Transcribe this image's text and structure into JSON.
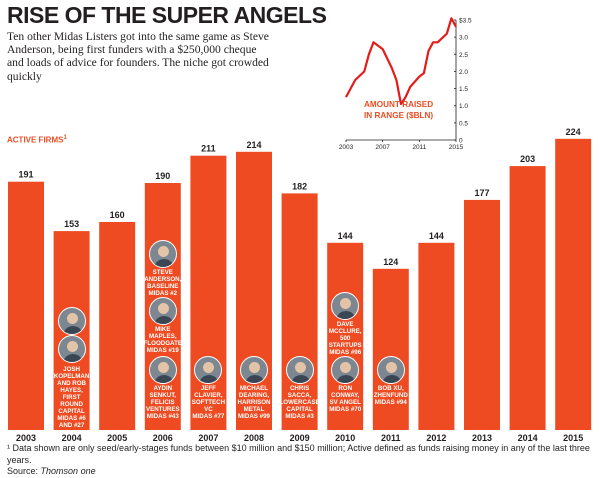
{
  "header": {
    "title": "RISE OF THE SUPER ANGELS",
    "subtitle": "Ten other Midas Listers got into the same game as Steve Anderson, being first funders with a $250,000 cheque and loads of advice for founders. The niche got crowded quickly"
  },
  "active_firms_label": "ACTIVE FIRMS",
  "active_firms_marker": "1",
  "footnote": {
    "line1": "¹ Data shown are only seed/early-stages funds between $10 million and $150 million; Active defined as funds raising money in any of the last three years.",
    "source_prefix": "Source:",
    "source_name": "Thomson one"
  },
  "colors": {
    "bar": "#ee4b22",
    "line": "#e31d1a",
    "text": "#231f20",
    "accent": "#e94e24"
  },
  "chart_data": [
    {
      "type": "bar",
      "title": "Active firms",
      "categories": [
        "2003",
        "2004",
        "2005",
        "2006",
        "2007",
        "2008",
        "2009",
        "2010",
        "2011",
        "2012",
        "2013",
        "2014",
        "2015"
      ],
      "values": [
        191,
        153,
        160,
        190,
        211,
        214,
        182,
        144,
        124,
        144,
        177,
        203,
        224
      ],
      "ylim": [
        0,
        240
      ]
    },
    {
      "type": "line",
      "title": "AMOUNT RAISED IN RANGE ($BLN)",
      "title_lines": [
        "AMOUNT RAISED",
        "IN RANGE ($BLN)"
      ],
      "x": [
        2003.0,
        2004.0,
        2005.0,
        2005.5,
        2006.0,
        2007.0,
        2008.0,
        2008.5,
        2009.0,
        2009.5,
        2010.0,
        2011.0,
        2011.5,
        2012.0,
        2012.5,
        2013.0,
        2014.0,
        2014.5,
        2015.0
      ],
      "values": [
        1.25,
        1.75,
        2.0,
        2.5,
        2.85,
        2.65,
        2.1,
        1.75,
        1.05,
        1.25,
        1.55,
        1.85,
        1.95,
        2.6,
        2.85,
        2.85,
        3.1,
        3.55,
        3.3
      ],
      "xticks": [
        "2003",
        "2007",
        "2011",
        "2015"
      ],
      "yticks": [
        "$3.5",
        "3.0",
        "2.5",
        "2.0",
        "1.5",
        "1.0",
        "0.5",
        "0"
      ],
      "xlim": [
        2003,
        2015
      ],
      "ylim": [
        0,
        3.5
      ]
    }
  ],
  "people": [
    {
      "id": "josh",
      "bar_index": 1,
      "name_lines": [
        "JOSH",
        "KOPELMAN",
        "AND ROB",
        "HAYES,",
        "FIRST",
        "ROUND",
        "CAPITAL",
        "MIDAS #6",
        "AND #27"
      ]
    },
    {
      "id": "steve",
      "bar_index": 3,
      "name_lines": [
        "STEVE",
        "ANDERSON,",
        "BASELINE",
        "MIDAS #2"
      ]
    },
    {
      "id": "mike",
      "bar_index": 3,
      "name_lines": [
        "MIKE",
        "MAPLES,",
        "FLOODGATE",
        "MIDAS #19"
      ]
    },
    {
      "id": "aydin",
      "bar_index": 3,
      "name_lines": [
        "AYDIN",
        "SENKUT,",
        "FELICIS",
        "VENTURES",
        "MIDAS #43"
      ]
    },
    {
      "id": "jeff",
      "bar_index": 4,
      "name_lines": [
        "JEFF",
        "CLAVIER,",
        "SOFTTECH",
        "VC",
        "MIDAS #77"
      ]
    },
    {
      "id": "michael",
      "bar_index": 5,
      "name_lines": [
        "MICHAEL",
        "DEARING,",
        "HARRISON",
        "METAL",
        "MIDAS #99"
      ]
    },
    {
      "id": "chris",
      "bar_index": 6,
      "name_lines": [
        "CHRIS",
        "SACCA,",
        "LOWERCASE",
        "CAPITAL",
        "MIDAS #3"
      ]
    },
    {
      "id": "dave",
      "bar_index": 7,
      "name_lines": [
        "DAVE",
        "MCCLURE,",
        "500",
        "STARTUPS",
        "MIDAS #96"
      ]
    },
    {
      "id": "ron",
      "bar_index": 7,
      "name_lines": [
        "RON",
        "CONWAY,",
        "SV ANGEL",
        "MIDAS #70"
      ]
    },
    {
      "id": "bob",
      "bar_index": 8,
      "name_lines": [
        "BOB XU,",
        "ZHENFUND",
        "MIDAS #94"
      ]
    }
  ]
}
